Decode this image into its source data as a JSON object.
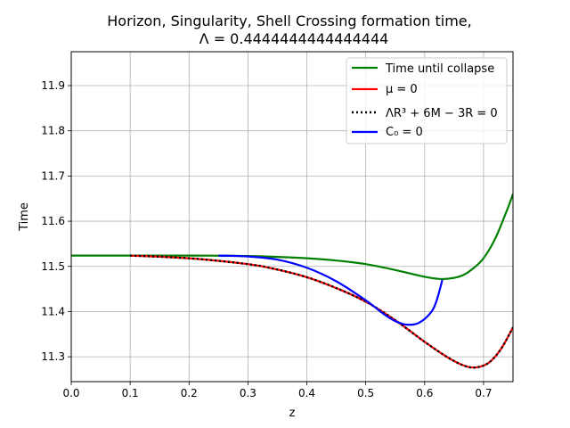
{
  "chart_data": {
    "type": "line",
    "title_line1": "Horizon, Singularity, Shell Crossing formation time,",
    "title_line2": "Λ = 0.4444444444444444",
    "xlabel": "z",
    "ylabel": "Time",
    "xlim": [
      0.0,
      0.75
    ],
    "ylim": [
      11.245,
      11.975
    ],
    "xticks": [
      0.0,
      0.1,
      0.2,
      0.3,
      0.4,
      0.5,
      0.6,
      0.7
    ],
    "xtick_labels": [
      "0.0",
      "0.1",
      "0.2",
      "0.3",
      "0.4",
      "0.5",
      "0.6",
      "0.7"
    ],
    "yticks": [
      11.3,
      11.4,
      11.5,
      11.6,
      11.7,
      11.8,
      11.9
    ],
    "ytick_labels": [
      "11.3",
      "11.4",
      "11.5",
      "11.6",
      "11.7",
      "11.8",
      "11.9"
    ],
    "grid": true,
    "legend_position": "top-right",
    "series": [
      {
        "name": "Time until collapse",
        "color": "#008000",
        "style": "solid",
        "x": [
          0.0,
          0.1,
          0.2,
          0.3,
          0.35,
          0.4,
          0.45,
          0.5,
          0.55,
          0.6,
          0.63,
          0.66,
          0.68,
          0.7,
          0.72,
          0.74,
          0.75
        ],
        "y": [
          11.524,
          11.524,
          11.524,
          11.523,
          11.521,
          11.518,
          11.513,
          11.505,
          11.492,
          11.477,
          11.472,
          11.478,
          11.493,
          11.518,
          11.562,
          11.625,
          11.66
        ]
      },
      {
        "name": "μ = 0",
        "color": "#ff0000",
        "style": "solid",
        "x": [
          0.1,
          0.2,
          0.3,
          0.35,
          0.4,
          0.45,
          0.5,
          0.55,
          0.6,
          0.64,
          0.67,
          0.69,
          0.71,
          0.73,
          0.75
        ],
        "y": [
          11.524,
          11.518,
          11.505,
          11.493,
          11.476,
          11.452,
          11.422,
          11.381,
          11.333,
          11.298,
          11.279,
          11.277,
          11.288,
          11.318,
          11.365
        ]
      },
      {
        "name": "ΛR³ + 6M − 3R = 0",
        "color": "#000000",
        "style": "dotted",
        "x": [
          0.1,
          0.2,
          0.3,
          0.35,
          0.4,
          0.45,
          0.5,
          0.55,
          0.6,
          0.64,
          0.67,
          0.69,
          0.71,
          0.73,
          0.75
        ],
        "y": [
          11.524,
          11.518,
          11.505,
          11.493,
          11.476,
          11.452,
          11.422,
          11.381,
          11.333,
          11.298,
          11.279,
          11.277,
          11.288,
          11.318,
          11.365
        ]
      },
      {
        "name": "C₀ = 0",
        "color": "#0000ff",
        "style": "solid",
        "x": [
          0.25,
          0.3,
          0.35,
          0.4,
          0.45,
          0.5,
          0.53,
          0.55,
          0.57,
          0.59,
          0.61,
          0.62,
          0.63
        ],
        "y": [
          11.524,
          11.522,
          11.515,
          11.497,
          11.467,
          11.425,
          11.395,
          11.379,
          11.371,
          11.375,
          11.397,
          11.423,
          11.47
        ]
      }
    ]
  }
}
